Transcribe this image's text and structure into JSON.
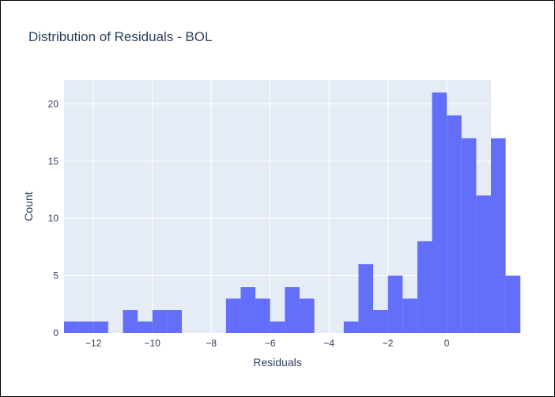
{
  "chart_data": {
    "type": "bar",
    "title": "Distribution of Residuals - BOL",
    "xlabel": "Residuals",
    "ylabel": "Count",
    "bin_width": 0.5,
    "bin_start": -13.0,
    "counts": [
      1,
      1,
      1,
      0,
      2,
      1,
      2,
      2,
      0,
      0,
      0,
      3,
      4,
      3,
      1,
      4,
      3,
      0,
      0,
      1,
      6,
      2,
      5,
      3,
      8,
      21,
      19,
      17,
      12,
      17,
      5
    ],
    "xlim": [
      -13.0,
      1.5
    ],
    "ylim": [
      0,
      22.1
    ],
    "xticks": [
      -12,
      -10,
      -8,
      -6,
      -4,
      -2,
      0
    ],
    "xtick_labels": [
      "−12",
      "−10",
      "−8",
      "−6",
      "−4",
      "−2",
      "0"
    ],
    "yticks": [
      0,
      5,
      10,
      15,
      20
    ],
    "ytick_labels": [
      "0",
      "5",
      "10",
      "15",
      "20"
    ],
    "bar_color": "#636efa",
    "plot_bg": "#e5ecf6",
    "grid": true
  }
}
